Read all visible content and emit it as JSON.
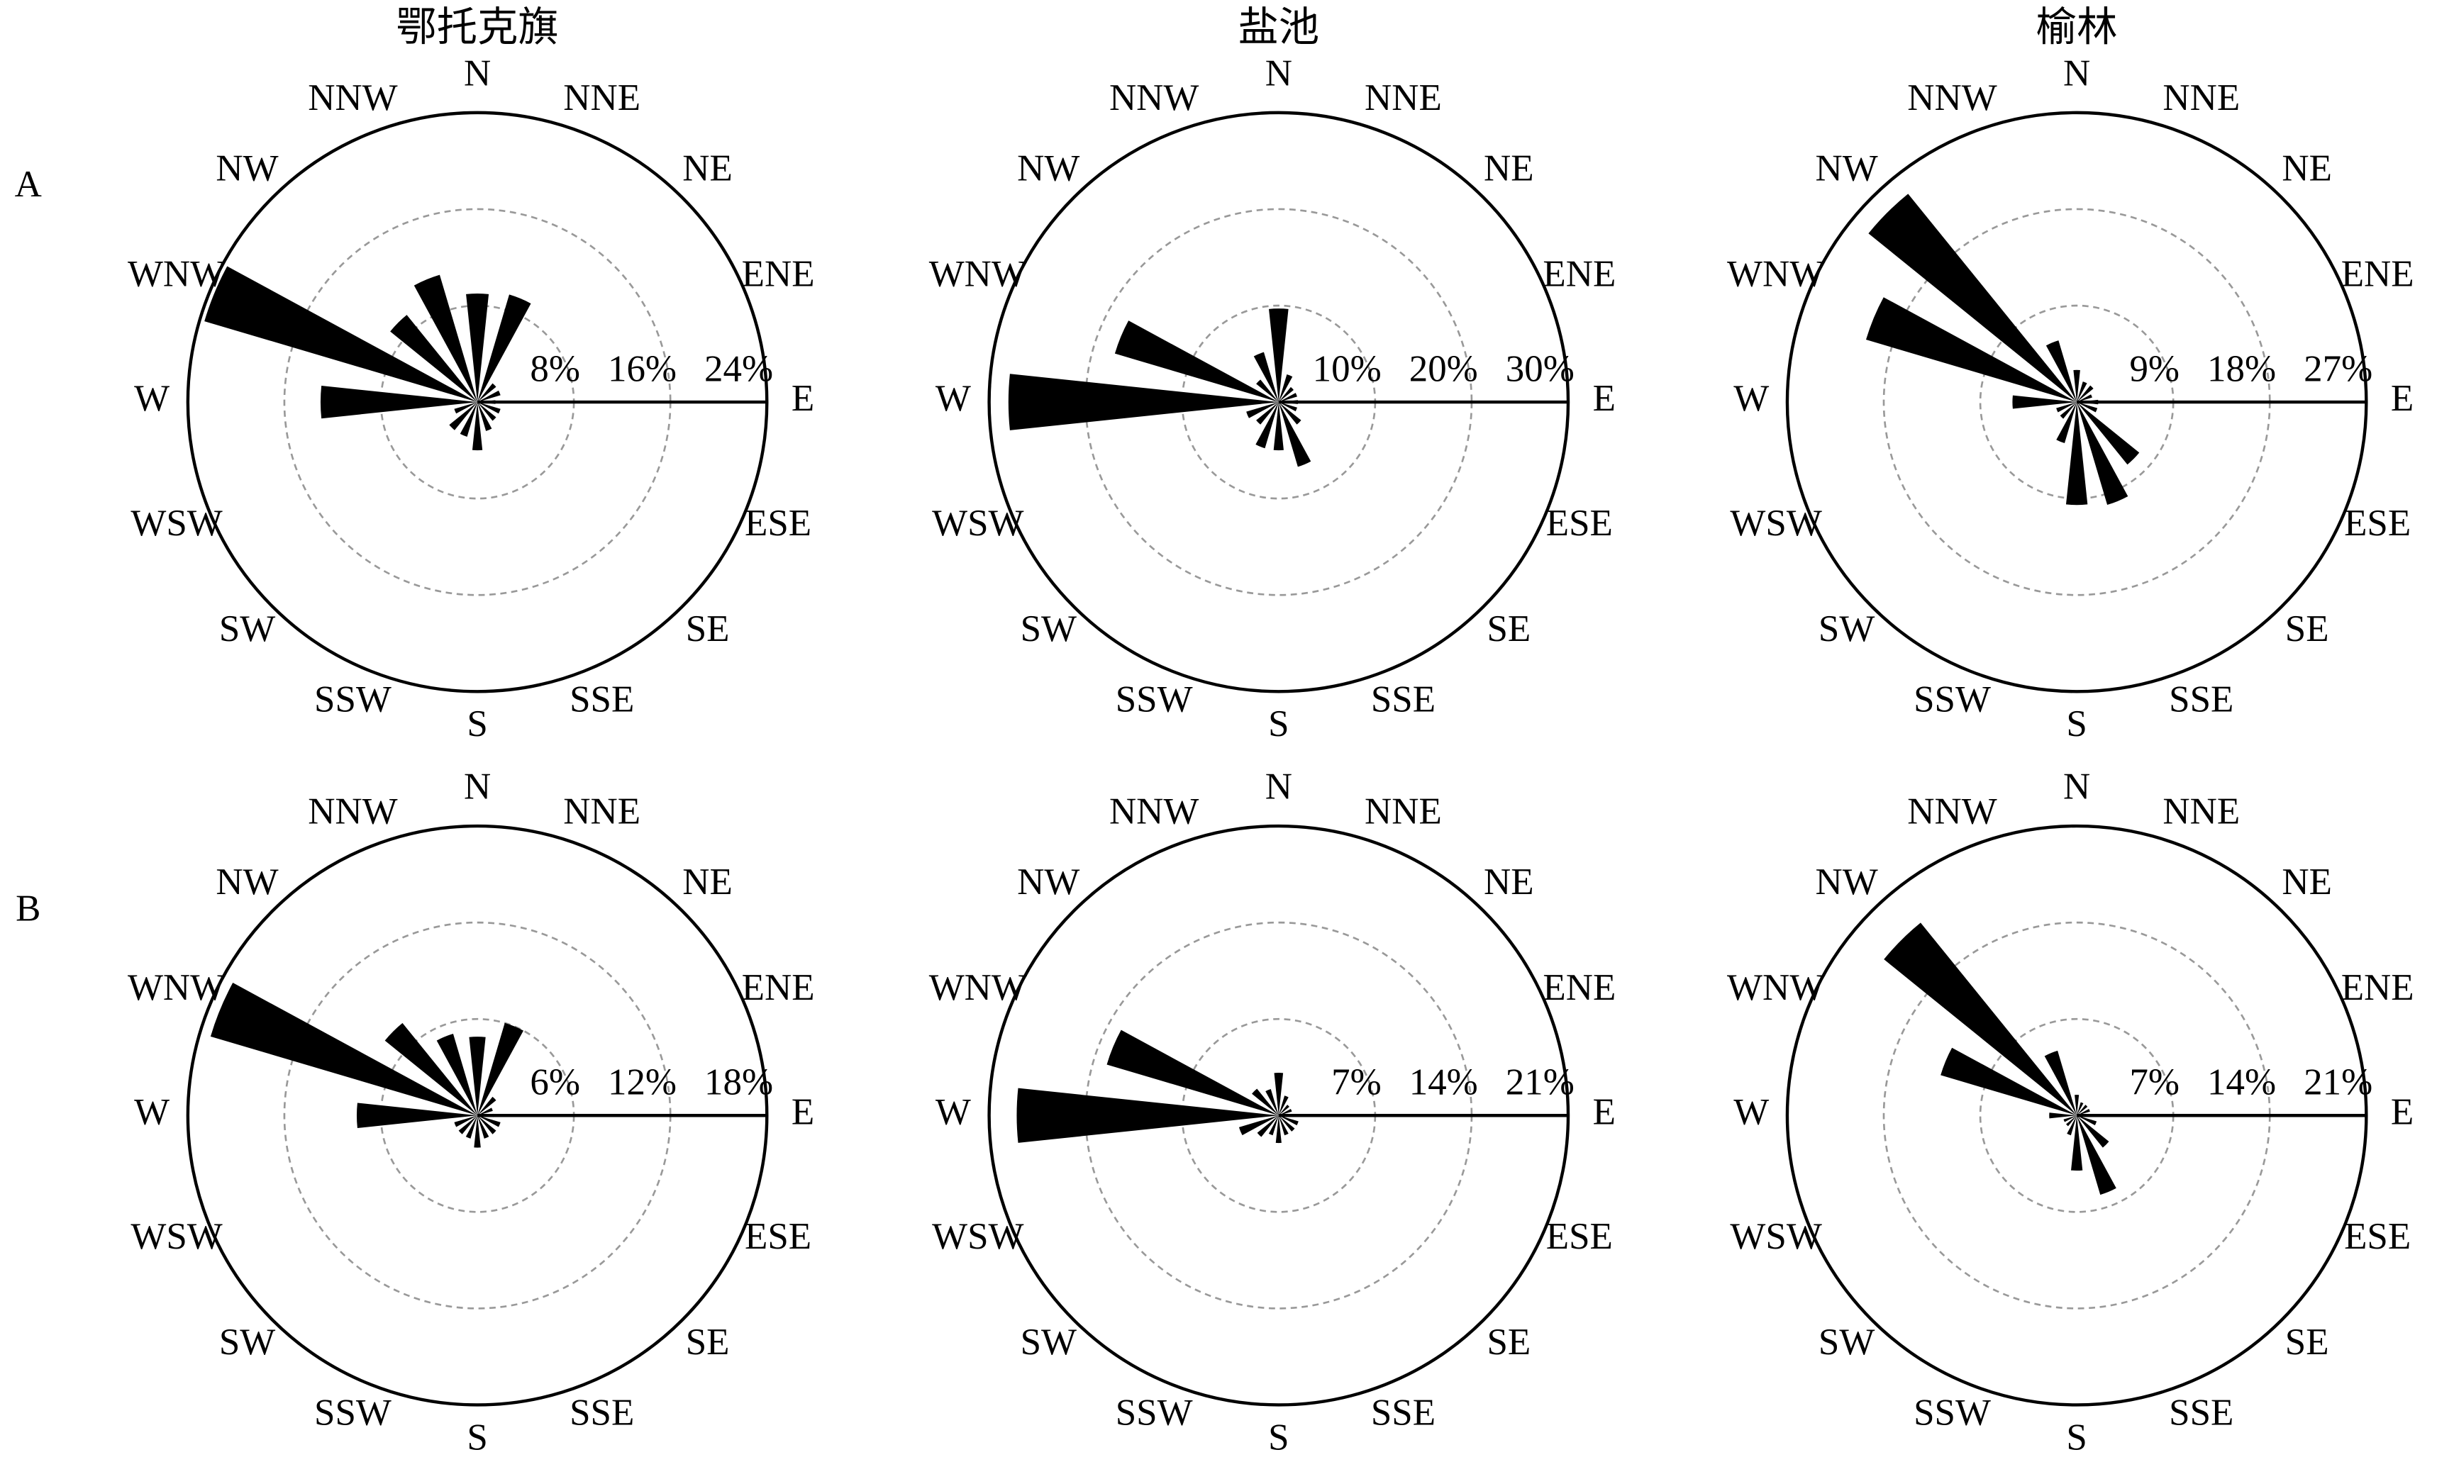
{
  "row_labels": [
    "A",
    "B"
  ],
  "chart_data": [
    {
      "type": "wind-rose",
      "title": "鄂托克旗",
      "categories": [
        "N",
        "NNE",
        "NE",
        "ENE",
        "E",
        "ESE",
        "SE",
        "SSE",
        "S",
        "SSW",
        "SW",
        "WSW",
        "W",
        "WNW",
        "NW",
        "NNW"
      ],
      "values": [
        9,
        9.3,
        2,
        2,
        1.5,
        2,
        2,
        2.5,
        4,
        3,
        3,
        2,
        13,
        23.6,
        9.3,
        11
      ],
      "color": "#000000",
      "rlim": [
        0,
        24
      ],
      "rticks": [
        {
          "value": 8,
          "label": "8%"
        },
        {
          "value": 16,
          "label": "16%"
        },
        {
          "value": 24,
          "label": "24%"
        }
      ]
    },
    {
      "type": "wind-rose",
      "title": "盐池",
      "categories": [
        "N",
        "NNE",
        "NE",
        "ENE",
        "E",
        "ESE",
        "SE",
        "SSE",
        "S",
        "SSW",
        "SW",
        "WSW",
        "W",
        "WNW",
        "NW",
        "NNW"
      ],
      "values": [
        9.7,
        3,
        2,
        2,
        2,
        2,
        3,
        7,
        5,
        5,
        3,
        3.5,
        28,
        17.7,
        3,
        5.4
      ],
      "color": "#000000",
      "rlim": [
        0,
        30
      ],
      "rticks": [
        {
          "value": 10,
          "label": "10%"
        },
        {
          "value": 20,
          "label": "20%"
        },
        {
          "value": 30,
          "label": "30%"
        }
      ]
    },
    {
      "type": "wind-rose",
      "title": "榆林",
      "categories": [
        "N",
        "NNE",
        "NE",
        "ENE",
        "E",
        "ESE",
        "SE",
        "SSE",
        "S",
        "SSW",
        "SW",
        "WSW",
        "W",
        "WNW",
        "NW",
        "NNW"
      ],
      "values": [
        3,
        2,
        2,
        1.5,
        2,
        2,
        7.5,
        10,
        9.6,
        4,
        2,
        2,
        6,
        20.5,
        25,
        6
      ],
      "color": "#000000",
      "rlim": [
        0,
        27
      ],
      "rticks": [
        {
          "value": 9,
          "label": "9%"
        },
        {
          "value": 18,
          "label": "18%"
        },
        {
          "value": 27,
          "label": "27%"
        }
      ]
    },
    {
      "type": "wind-rose",
      "categories": [
        "N",
        "NNE",
        "NE",
        "ENE",
        "E",
        "ESE",
        "SE",
        "SSE",
        "S",
        "SSW",
        "SW",
        "WSW",
        "W",
        "WNW",
        "NW",
        "NNW"
      ],
      "values": [
        4.9,
        6,
        1.5,
        1,
        1,
        1.5,
        1.5,
        1.5,
        2,
        1.5,
        1.5,
        1.5,
        7.5,
        17.3,
        7.4,
        5.3
      ],
      "color": "#000000",
      "rlim": [
        0,
        18
      ],
      "rticks": [
        {
          "value": 6,
          "label": "6%"
        },
        {
          "value": 12,
          "label": "12%"
        },
        {
          "value": 18,
          "label": "18%"
        }
      ]
    },
    {
      "type": "wind-rose",
      "categories": [
        "N",
        "NNE",
        "NE",
        "ENE",
        "E",
        "ESE",
        "SE",
        "SSE",
        "S",
        "SSW",
        "SW",
        "WSW",
        "W",
        "WNW",
        "NW",
        "NNW"
      ],
      "values": [
        3.1,
        1.5,
        1,
        1,
        1,
        1.5,
        1.5,
        1.5,
        2,
        1.5,
        2,
        3,
        19,
        13,
        2.5,
        2
      ],
      "color": "#000000",
      "rlim": [
        0,
        21
      ],
      "rticks": [
        {
          "value": 7,
          "label": "7%"
        },
        {
          "value": 14,
          "label": "14%"
        },
        {
          "value": 21,
          "label": "21%"
        }
      ]
    },
    {
      "type": "wind-rose",
      "categories": [
        "N",
        "NNE",
        "NE",
        "ENE",
        "E",
        "ESE",
        "SE",
        "SSE",
        "S",
        "SSW",
        "SW",
        "WSW",
        "W",
        "WNW",
        "NW",
        "NNW"
      ],
      "values": [
        1.5,
        1,
        1,
        1,
        1,
        1.5,
        3,
        6,
        4,
        1.5,
        1,
        1,
        2,
        10.3,
        18,
        4.9
      ],
      "color": "#000000",
      "rlim": [
        0,
        21
      ],
      "rticks": [
        {
          "value": 7,
          "label": "7%"
        },
        {
          "value": 14,
          "label": "14%"
        },
        {
          "value": 21,
          "label": "21%"
        }
      ]
    }
  ]
}
